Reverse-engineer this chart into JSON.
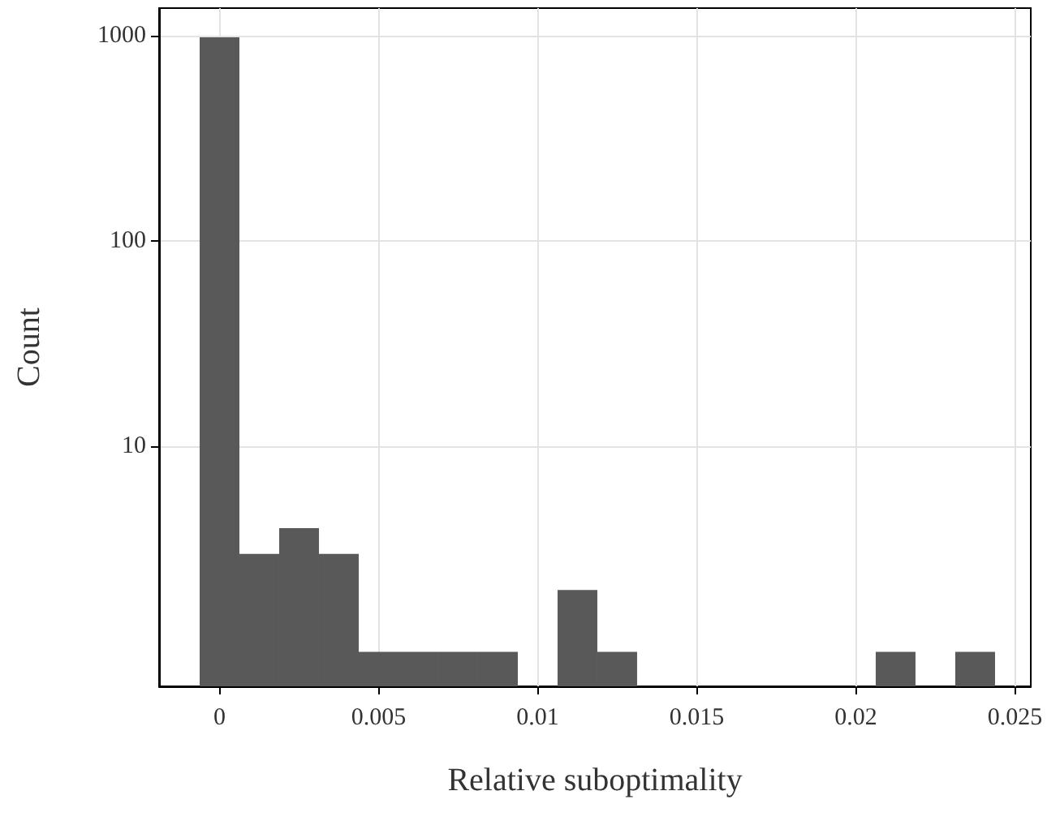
{
  "chart_data": {
    "type": "histogram",
    "xlabel": "Relative suboptimality",
    "ylabel": "Count",
    "bins": [
      -0.000625,
      0.000625,
      0.001875,
      0.003125,
      0.004375,
      0.005625,
      0.006875,
      0.008125,
      0.009375,
      0.010625,
      0.011875,
      0.013125,
      0.014375,
      0.015625,
      0.016875,
      0.018125,
      0.019375,
      0.020625,
      0.021875,
      0.023125,
      0.024375
    ],
    "values": [
      980,
      3,
      4,
      3,
      1,
      1,
      1,
      1,
      null,
      2,
      1,
      null,
      null,
      null,
      null,
      null,
      null,
      1,
      null,
      1
    ],
    "color": "#595959",
    "log": "y",
    "xlim": [
      -0.0019,
      0.0255
    ],
    "xticks": [
      0,
      0.005,
      0.01,
      0.015,
      0.02,
      0.025
    ],
    "ylim": [
      0.68,
      1360
    ],
    "yticks": [
      10,
      100,
      1000
    ],
    "grid": true
  }
}
